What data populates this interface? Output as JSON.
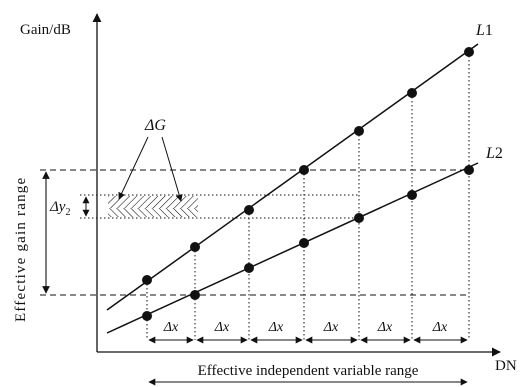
{
  "axes": {
    "y_label": "Gain/dB",
    "x_label": "DN"
  },
  "lines": {
    "l1_label": "L",
    "l1_sub": "1",
    "l2_label": "L",
    "l2_sub": "2"
  },
  "annotations": {
    "delta_g": "ΔG",
    "delta_y": "Δy",
    "delta_y_sub": "2",
    "delta_x": "Δx",
    "gain_range": "Effective gain range",
    "independent_range": "Effective independent variable range"
  },
  "segments": {
    "count": 6
  }
}
